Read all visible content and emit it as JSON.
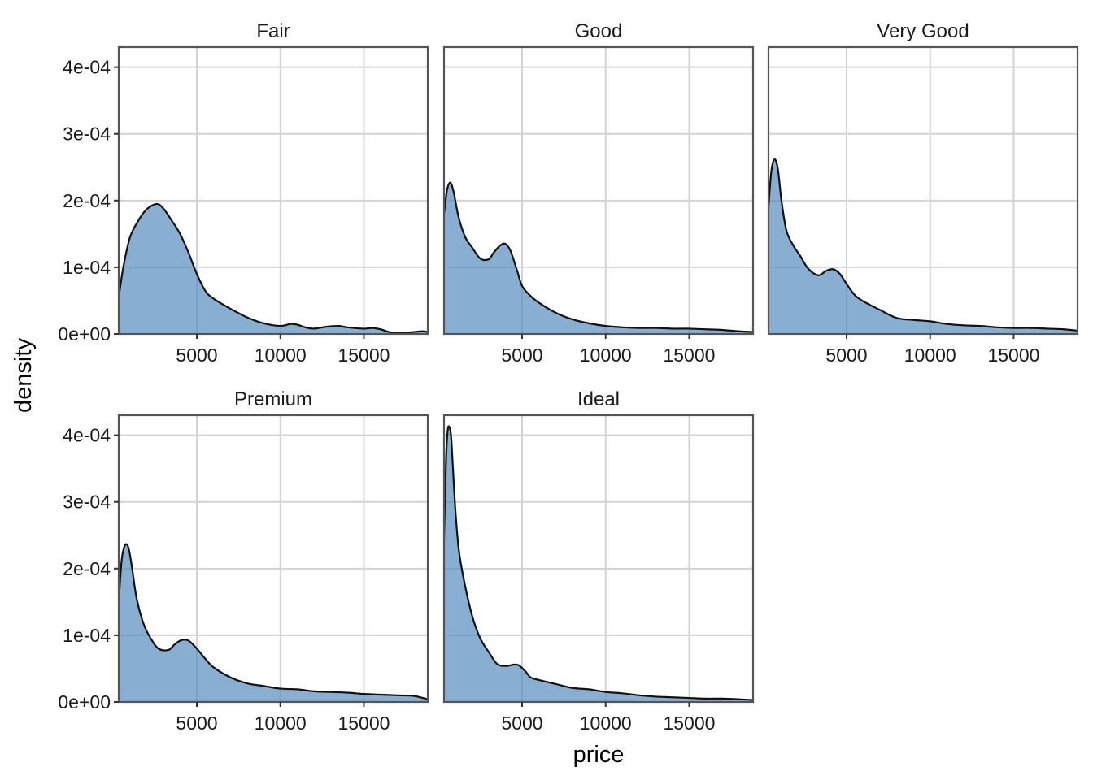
{
  "chart_data": {
    "type": "area",
    "title": "",
    "xlabel": "price",
    "ylabel": "density",
    "xlim": [
      326,
      18823
    ],
    "ylim": [
      0,
      0.00043
    ],
    "x_ticks": [
      5000,
      10000,
      15000
    ],
    "x_tick_labels": [
      "5000",
      "10000",
      "15000"
    ],
    "y_ticks": [
      0,
      0.0001,
      0.0002,
      0.0003,
      0.0004
    ],
    "y_tick_labels": [
      "0e+00",
      "1e-04",
      "2e-04",
      "3e-04",
      "4e-04"
    ],
    "grid": true,
    "fill_color": "#4f89bd",
    "fill_opacity": 0.68,
    "line_color": "#111111",
    "grid_color": "#d3d3d3",
    "panel_border_color": "#555555",
    "facets": [
      {
        "label": "Fair",
        "x": [
          326,
          600,
          1000,
          1500,
          2000,
          2600,
          3000,
          3500,
          4000,
          4500,
          5000,
          5500,
          6000,
          7000,
          8000,
          9000,
          10000,
          10600,
          11000,
          11500,
          12000,
          12800,
          13500,
          14000,
          15000,
          15500,
          16000,
          16500,
          17000,
          17500,
          18000,
          18500,
          18823
        ],
        "values": [
          5.5e-05,
          0.0001,
          0.000145,
          0.00017,
          0.000187,
          0.000195,
          0.000188,
          0.00017,
          0.00015,
          0.000122,
          9e-05,
          6.5e-05,
          5.3e-05,
          3.8e-05,
          2.5e-05,
          1.6e-05,
          1.2e-05,
          1.5e-05,
          1.4e-05,
          1e-05,
          8e-06,
          1.1e-05,
          1.2e-05,
          1e-05,
          8e-06,
          9e-06,
          7e-06,
          3e-06,
          2e-06,
          2e-06,
          3e-06,
          4e-06,
          3e-06
        ]
      },
      {
        "label": "Good",
        "x": [
          326,
          500,
          700,
          900,
          1200,
          1600,
          2000,
          2500,
          3000,
          3300,
          3700,
          4000,
          4300,
          4700,
          5000,
          5500,
          6000,
          7000,
          8000,
          9000,
          10000,
          11000,
          12000,
          13000,
          14000,
          15000,
          16000,
          17000,
          18000,
          18823
        ],
        "values": [
          0.00018,
          0.000215,
          0.000227,
          0.000213,
          0.000175,
          0.000145,
          0.00013,
          0.000113,
          0.000112,
          0.000122,
          0.000133,
          0.000135,
          0.000125,
          9.5e-05,
          7.2e-05,
          5.7e-05,
          4.7e-05,
          3.2e-05,
          2.2e-05,
          1.6e-05,
          1.2e-05,
          1e-05,
          9e-06,
          9e-06,
          8e-06,
          8e-06,
          7e-06,
          6e-06,
          4e-06,
          3e-06
        ]
      },
      {
        "label": "Very Good",
        "x": [
          326,
          500,
          700,
          900,
          1100,
          1400,
          1800,
          2200,
          2700,
          3300,
          3800,
          4200,
          4600,
          5000,
          5500,
          6000,
          7000,
          8000,
          9000,
          10000,
          11000,
          12000,
          13000,
          14000,
          15000,
          16000,
          17000,
          18000,
          18823
        ],
        "values": [
          0.00019,
          0.000245,
          0.000262,
          0.000245,
          0.0002,
          0.000155,
          0.000133,
          0.000118,
          9.8e-05,
          8.8e-05,
          9.5e-05,
          9.7e-05,
          9e-05,
          7.5e-05,
          5.8e-05,
          4.9e-05,
          3.6e-05,
          2.4e-05,
          2.1e-05,
          1.9e-05,
          1.5e-05,
          1.3e-05,
          1.2e-05,
          1e-05,
          9e-06,
          9e-06,
          8e-06,
          7e-06,
          5e-06
        ]
      },
      {
        "label": "Premium",
        "x": [
          326,
          500,
          700,
          900,
          1100,
          1400,
          1800,
          2200,
          2700,
          3300,
          3700,
          4100,
          4500,
          5000,
          5500,
          6000,
          7000,
          8000,
          9000,
          10000,
          11000,
          12000,
          13000,
          14000,
          15000,
          16000,
          17000,
          18000,
          18823
        ],
        "values": [
          0.00015,
          0.000212,
          0.000235,
          0.000232,
          0.000205,
          0.000155,
          0.000118,
          9.7e-05,
          8e-05,
          7.8e-05,
          8.7e-05,
          9.3e-05,
          9.2e-05,
          8e-05,
          6.5e-05,
          5.2e-05,
          3.7e-05,
          2.8e-05,
          2.4e-05,
          2e-05,
          1.9e-05,
          1.6e-05,
          1.5e-05,
          1.4e-05,
          1.2e-05,
          1.1e-05,
          1e-05,
          9e-06,
          4e-06
        ]
      },
      {
        "label": "Ideal",
        "x": [
          326,
          450,
          550,
          650,
          750,
          850,
          1000,
          1200,
          1500,
          2000,
          2500,
          3000,
          3500,
          4000,
          4500,
          4800,
          5200,
          5500,
          6000,
          7000,
          8000,
          9000,
          10000,
          11000,
          12000,
          13000,
          14000,
          15000,
          16000,
          17000,
          18000,
          18823
        ],
        "values": [
          0.000245,
          0.000365,
          0.000408,
          0.000412,
          0.000398,
          0.000355,
          0.00029,
          0.00023,
          0.000185,
          0.00013,
          9.5e-05,
          7.5e-05,
          5.7e-05,
          5.4e-05,
          5.6e-05,
          5.5e-05,
          4.6e-05,
          3.7e-05,
          3.3e-05,
          2.7e-05,
          2.1e-05,
          1.9e-05,
          1.5e-05,
          1.3e-05,
          1e-05,
          8e-06,
          7e-06,
          6e-06,
          5e-06,
          5e-06,
          4e-06,
          3e-06
        ]
      }
    ]
  }
}
